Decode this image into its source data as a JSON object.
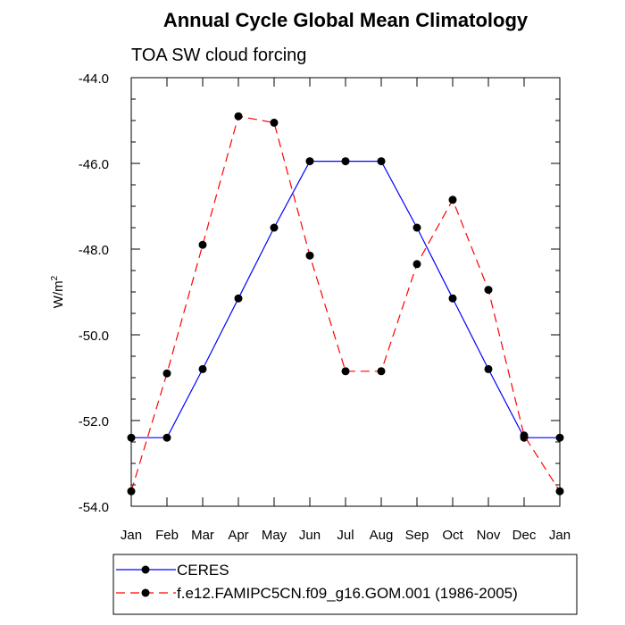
{
  "chart_data": {
    "type": "line",
    "title": "Annual Cycle Global Mean Climatology",
    "subtitle": "TOA SW cloud forcing",
    "ylabel": "W/m",
    "ylabel_superscript": "2",
    "xlabel": "",
    "categories": [
      "Jan",
      "Feb",
      "Mar",
      "Apr",
      "May",
      "Jun",
      "Jul",
      "Aug",
      "Sep",
      "Oct",
      "Nov",
      "Dec",
      "Jan"
    ],
    "ylim": [
      -54.0,
      -44.0
    ],
    "yticks": [
      "-44.0",
      "-46.0",
      "-48.0",
      "-50.0",
      "-52.0",
      "-54.0"
    ],
    "ytick_values": [
      -44.0,
      -46.0,
      -48.0,
      -50.0,
      -52.0,
      -54.0
    ],
    "grid": false,
    "legend_position": "bottom",
    "series": [
      {
        "name": "CERES",
        "color": "#0000ff",
        "dashed": false,
        "values": [
          -52.4,
          -52.4,
          -50.8,
          -49.15,
          -47.5,
          -45.95,
          -45.95,
          -45.95,
          -47.5,
          -49.15,
          -50.8,
          -52.4,
          -52.4
        ]
      },
      {
        "name": "f.e12.FAMIPC5CN.f09_g16.GOM.001 (1986-2005)",
        "color": "#ff0000",
        "dashed": true,
        "values": [
          -53.65,
          -50.9,
          -47.9,
          -44.9,
          -45.05,
          -48.15,
          -50.85,
          -50.85,
          -48.35,
          -46.85,
          -48.95,
          -52.35,
          -53.65
        ]
      }
    ]
  }
}
